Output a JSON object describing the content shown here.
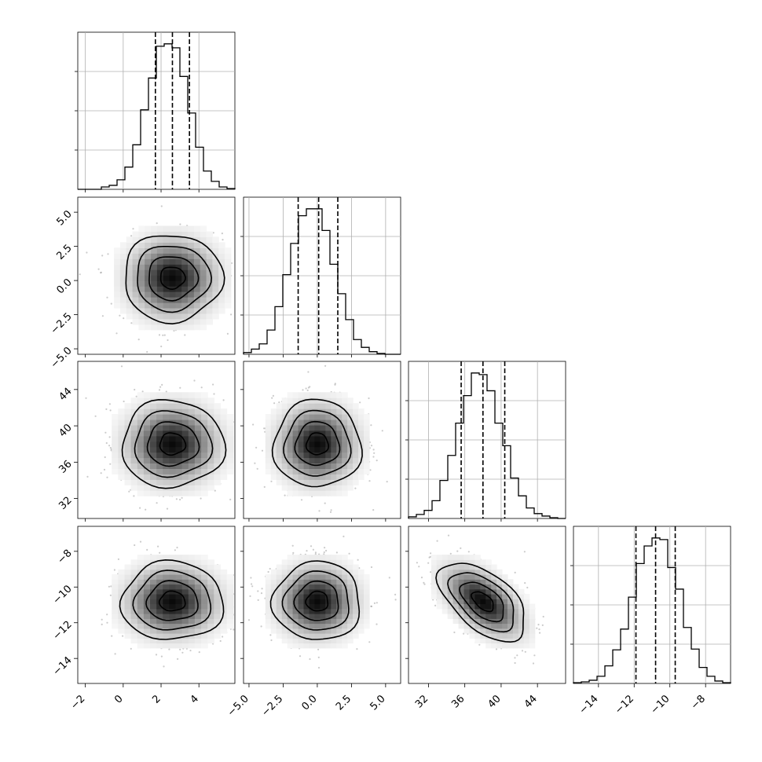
{
  "chart_data": {
    "type": "corner",
    "n_params": 4,
    "params": [
      {
        "index": 0,
        "median": 2.6,
        "q16": 1.7,
        "q84": 3.5,
        "range": [
          -2.4,
          5.9
        ],
        "ticks": [
          -2,
          0,
          2,
          4
        ],
        "tick_labels": [
          "−2",
          "0",
          "2",
          "4"
        ]
      },
      {
        "index": 1,
        "median": 0.1,
        "q16": -1.4,
        "q84": 1.5,
        "range": [
          -5.4,
          6.1
        ],
        "ticks": [
          -5.0,
          -2.5,
          0.0,
          2.5,
          5.0
        ],
        "tick_labels": [
          "−5.0",
          "−2.5",
          "0.0",
          "2.5",
          "5.0"
        ]
      },
      {
        "index": 2,
        "median": 38.0,
        "q16": 35.6,
        "q84": 40.4,
        "range": [
          29.8,
          47.1
        ],
        "ticks": [
          32,
          36,
          40,
          44
        ],
        "tick_labels": [
          "32",
          "36",
          "40",
          "44"
        ]
      },
      {
        "index": 3,
        "median": -10.8,
        "q16": -11.9,
        "q84": -9.7,
        "range": [
          -15.4,
          -6.6
        ],
        "ticks": [
          -14,
          -12,
          -10,
          -8
        ],
        "tick_labels": [
          "−14",
          "−12",
          "−10",
          "−8"
        ]
      }
    ],
    "histograms": [
      {
        "param": 0,
        "bin_edges": [
          -2.4,
          -1.985,
          -1.57,
          -1.155,
          -0.74,
          -0.325,
          0.09,
          0.505,
          0.92,
          1.335,
          1.75,
          2.165,
          2.58,
          2.995,
          3.41,
          3.825,
          4.24,
          4.655,
          5.07,
          5.485,
          5.9
        ],
        "counts": [
          0,
          0,
          0,
          3,
          5,
          12,
          28,
          56,
          100,
          140,
          180,
          183,
          178,
          142,
          96,
          53,
          23,
          10,
          3,
          1
        ]
      },
      {
        "param": 1,
        "bin_edges": [
          -5.4,
          -4.825,
          -4.25,
          -3.675,
          -3.1,
          -2.525,
          -1.95,
          -1.375,
          -0.8,
          -0.225,
          0.35,
          0.925,
          1.5,
          2.075,
          2.65,
          3.225,
          3.8,
          4.375,
          4.95,
          5.525,
          6.1
        ],
        "counts": [
          2,
          6,
          12,
          28,
          55,
          92,
          128,
          160,
          168,
          168,
          143,
          104,
          70,
          40,
          17,
          8,
          3,
          1,
          0,
          0
        ]
      },
      {
        "param": 2,
        "bin_edges": [
          29.8,
          30.665,
          31.53,
          32.395,
          33.26,
          34.125,
          34.99,
          35.855,
          36.72,
          37.585,
          38.45,
          39.315,
          40.18,
          41.045,
          41.91,
          42.775,
          43.64,
          44.505,
          45.37,
          46.235,
          47.1
        ],
        "counts": [
          2,
          5,
          10,
          22,
          47,
          78,
          118,
          152,
          180,
          178,
          158,
          118,
          90,
          50,
          28,
          13,
          6,
          3,
          1,
          0
        ]
      },
      {
        "param": 3,
        "bin_edges": [
          -15.4,
          -14.96,
          -14.52,
          -14.08,
          -13.64,
          -13.2,
          -12.76,
          -12.32,
          -11.88,
          -11.44,
          -11.0,
          -10.56,
          -10.12,
          -9.68,
          -9.24,
          -8.8,
          -8.36,
          -7.92,
          -7.48,
          -7.04,
          -6.6
        ],
        "counts": [
          1,
          2,
          4,
          9,
          22,
          42,
          68,
          108,
          150,
          172,
          182,
          180,
          145,
          118,
          70,
          43,
          20,
          9,
          3,
          1
        ]
      }
    ],
    "pairs": [
      {
        "x_param": 0,
        "y_param": 1,
        "center": [
          2.6,
          0.2
        ],
        "spread": [
          1.3,
          1.6
        ],
        "correlation": 0.0
      },
      {
        "x_param": 0,
        "y_param": 2,
        "center": [
          2.6,
          38.0
        ],
        "spread": [
          1.35,
          2.4
        ],
        "correlation": 0.0
      },
      {
        "x_param": 1,
        "y_param": 2,
        "center": [
          0.0,
          38.0
        ],
        "spread": [
          1.6,
          2.4
        ],
        "correlation": 0.0
      },
      {
        "x_param": 0,
        "y_param": 3,
        "center": [
          2.6,
          -10.8
        ],
        "spread": [
          1.35,
          1.1
        ],
        "correlation": 0.0
      },
      {
        "x_param": 1,
        "y_param": 3,
        "center": [
          0.0,
          -10.8
        ],
        "spread": [
          1.6,
          1.1
        ],
        "correlation": 0.0
      },
      {
        "x_param": 2,
        "y_param": 3,
        "center": [
          38.0,
          -10.8
        ],
        "spread": [
          2.4,
          1.1
        ],
        "correlation": -0.55
      }
    ],
    "contour_levels_sigma": [
      0.5,
      1.0,
      1.5,
      2.0
    ],
    "colors": {
      "density": "#000000",
      "scatter": "#a0a0a0",
      "grid": "#b0b0b0",
      "frame": "#000000"
    },
    "grid": true,
    "title": "",
    "axis_labels": []
  }
}
